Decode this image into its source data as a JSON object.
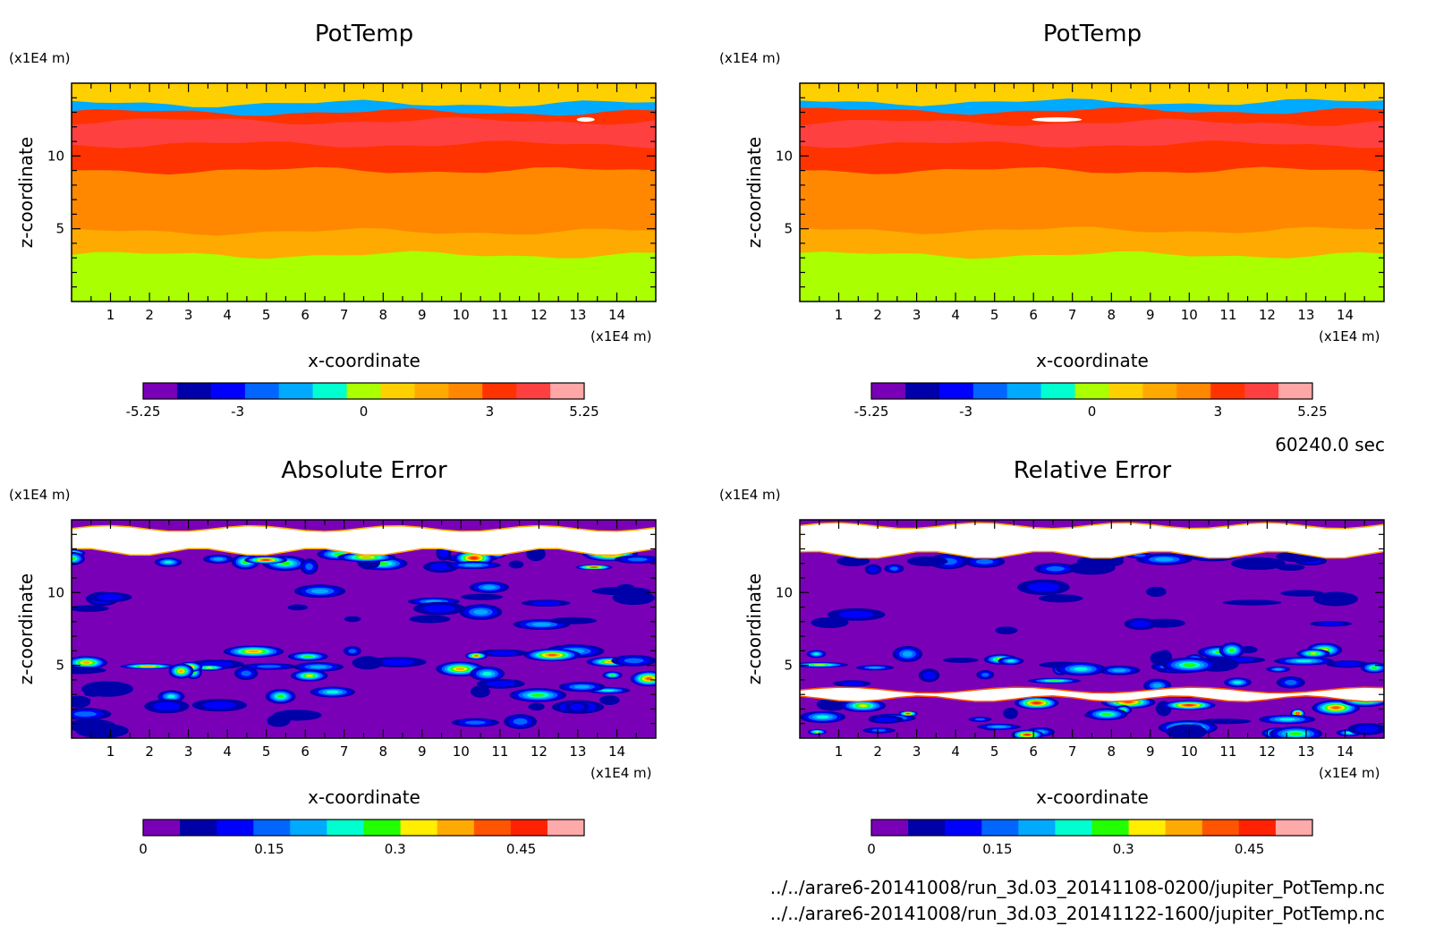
{
  "chart_data": [
    {
      "type": "heatmap",
      "panel": "top-left",
      "title": "PotTemp",
      "xlabel": "x-coordinate",
      "ylabel": "z-coordinate",
      "x_unit": "(x1E4 m)",
      "y_unit": "(x1E4 m)",
      "xlim": [
        0,
        15
      ],
      "ylim": [
        0,
        15
      ],
      "x_ticks": [
        1,
        2,
        3,
        4,
        5,
        6,
        7,
        8,
        9,
        10,
        11,
        12,
        13,
        14
      ],
      "y_ticks": [
        5,
        10
      ],
      "layers_bottom_to_top": [
        {
          "z_top": 3.2,
          "value": 0
        },
        {
          "z_top": 4.8,
          "value": 1.5
        },
        {
          "z_top": 9.0,
          "value": 2.25
        },
        {
          "z_top": 10.8,
          "value": 3.0
        },
        {
          "z_top": 12.4,
          "value": 4.0
        },
        {
          "z_top": 13.0,
          "value": 3.0
        },
        {
          "z_top": 13.6,
          "value": -2.0
        },
        {
          "z_top": 14.8,
          "value": 0.75
        }
      ],
      "colorbar": {
        "ticks": [
          "-5.25",
          "-3",
          "0",
          "3",
          "5.25"
        ],
        "range": [
          -5.25,
          5.25
        ],
        "bins": 14
      }
    },
    {
      "type": "heatmap",
      "panel": "top-right",
      "title": "PotTemp",
      "xlabel": "x-coordinate",
      "ylabel": "z-coordinate",
      "x_unit": "(x1E4 m)",
      "y_unit": "(x1E4 m)",
      "xlim": [
        0,
        15
      ],
      "ylim": [
        0,
        15
      ],
      "x_ticks": [
        1,
        2,
        3,
        4,
        5,
        6,
        7,
        8,
        9,
        10,
        11,
        12,
        13,
        14
      ],
      "y_ticks": [
        5,
        10
      ],
      "layers_bottom_to_top": [
        {
          "z_top": 3.2,
          "value": 0
        },
        {
          "z_top": 4.9,
          "value": 1.5
        },
        {
          "z_top": 9.0,
          "value": 2.25
        },
        {
          "z_top": 10.8,
          "value": 3.0
        },
        {
          "z_top": 12.3,
          "value": 4.0
        },
        {
          "z_top": 13.1,
          "value": 3.0
        },
        {
          "z_top": 13.7,
          "value": -2.0
        },
        {
          "z_top": 14.8,
          "value": 0.75
        }
      ],
      "colorbar": {
        "ticks": [
          "-5.25",
          "-3",
          "0",
          "3",
          "5.25"
        ],
        "range": [
          -5.25,
          5.25
        ],
        "bins": 14
      }
    },
    {
      "type": "heatmap",
      "panel": "bottom-left",
      "title": "Absolute Error",
      "xlabel": "x-coordinate",
      "ylabel": "z-coordinate",
      "x_unit": "(x1E4 m)",
      "y_unit": "(x1E4 m)",
      "xlim": [
        0,
        15
      ],
      "ylim": [
        0,
        15
      ],
      "x_ticks": [
        1,
        2,
        3,
        4,
        5,
        6,
        7,
        8,
        9,
        10,
        11,
        12,
        13,
        14
      ],
      "y_ticks": [
        5,
        10
      ],
      "colorbar": {
        "ticks": [
          "0",
          "0.15",
          "0.3",
          "0.45"
        ],
        "range": [
          0,
          0.525
        ],
        "bins": 11
      }
    },
    {
      "type": "heatmap",
      "panel": "bottom-right",
      "title": "Relative Error",
      "xlabel": "x-coordinate",
      "ylabel": "z-coordinate",
      "x_unit": "(x1E4 m)",
      "y_unit": "(x1E4 m)",
      "xlim": [
        0,
        15
      ],
      "ylim": [
        0,
        15
      ],
      "x_ticks": [
        1,
        2,
        3,
        4,
        5,
        6,
        7,
        8,
        9,
        10,
        11,
        12,
        13,
        14
      ],
      "y_ticks": [
        5,
        10
      ],
      "colorbar": {
        "ticks": [
          "0",
          "0.15",
          "0.3",
          "0.45"
        ],
        "range": [
          0,
          0.525
        ],
        "bins": 11
      }
    }
  ],
  "colors": {
    "potential": [
      "#7a00b8",
      "#0000a8",
      "#0000ff",
      "#0066ff",
      "#00aaff",
      "#00ffd0",
      "#aaff00",
      "#ffd000",
      "#ffaa00",
      "#ff8800",
      "#ff3300",
      "#ff4040",
      "#ffa6a6"
    ],
    "error": [
      "#7a00b8",
      "#0000a8",
      "#0000ff",
      "#0066ff",
      "#00aaff",
      "#00ffd0",
      "#22ff00",
      "#ffee00",
      "#ffaa00",
      "#ff5500",
      "#ff2200",
      "#ffaaaa"
    ],
    "overflow": "#ffffff"
  },
  "info": {
    "time": "60240.0 sec",
    "file1": "../../arare6-20141008/run_3d.03_20141108-0200/jupiter_PotTemp.nc",
    "file2": "../../arare6-20141008/run_3d.03_20141122-1600/jupiter_PotTemp.nc"
  }
}
